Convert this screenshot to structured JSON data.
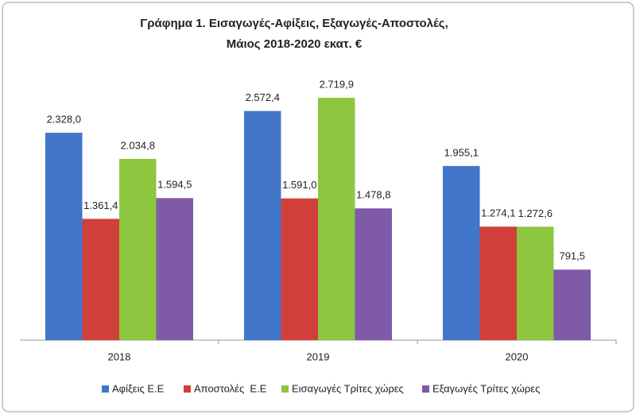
{
  "chart_data": {
    "type": "bar",
    "title": [
      "Γράφημα 1. Εισαγωγές-Αφίξεις, Εξαγωγές-Αποστολές,",
      "Μάιος 2018-2020 εκατ. €"
    ],
    "categories": [
      "2018",
      "2019",
      "2020"
    ],
    "series": [
      {
        "name": "Αφίξεις Ε.Ε",
        "color": "#4276c9",
        "values": [
          2328.0,
          2572.4,
          1955.1
        ],
        "value_labels": [
          "2.328,0",
          "2.572,4",
          "1.955,1"
        ]
      },
      {
        "name": "Αποστολές  Ε.Ε",
        "color": "#d1403a",
        "values": [
          1361.4,
          1591.0,
          1274.1
        ],
        "value_labels": [
          "1.361,4",
          "1.591,0",
          "1.274,1"
        ]
      },
      {
        "name": "Εισαγωγές Τρίτες χώρες",
        "color": "#8dc63f",
        "values": [
          2034.8,
          2719.9,
          1272.6
        ],
        "value_labels": [
          "2.034,8",
          "2.719,9",
          "1.272,6"
        ]
      },
      {
        "name": "Εξαγωγές Τρίτες χώρες",
        "color": "#7e5aa8",
        "values": [
          1594.5,
          1478.8,
          791.5
        ],
        "value_labels": [
          "1.594,5",
          "1.478,8",
          "791,5"
        ]
      }
    ]
  }
}
